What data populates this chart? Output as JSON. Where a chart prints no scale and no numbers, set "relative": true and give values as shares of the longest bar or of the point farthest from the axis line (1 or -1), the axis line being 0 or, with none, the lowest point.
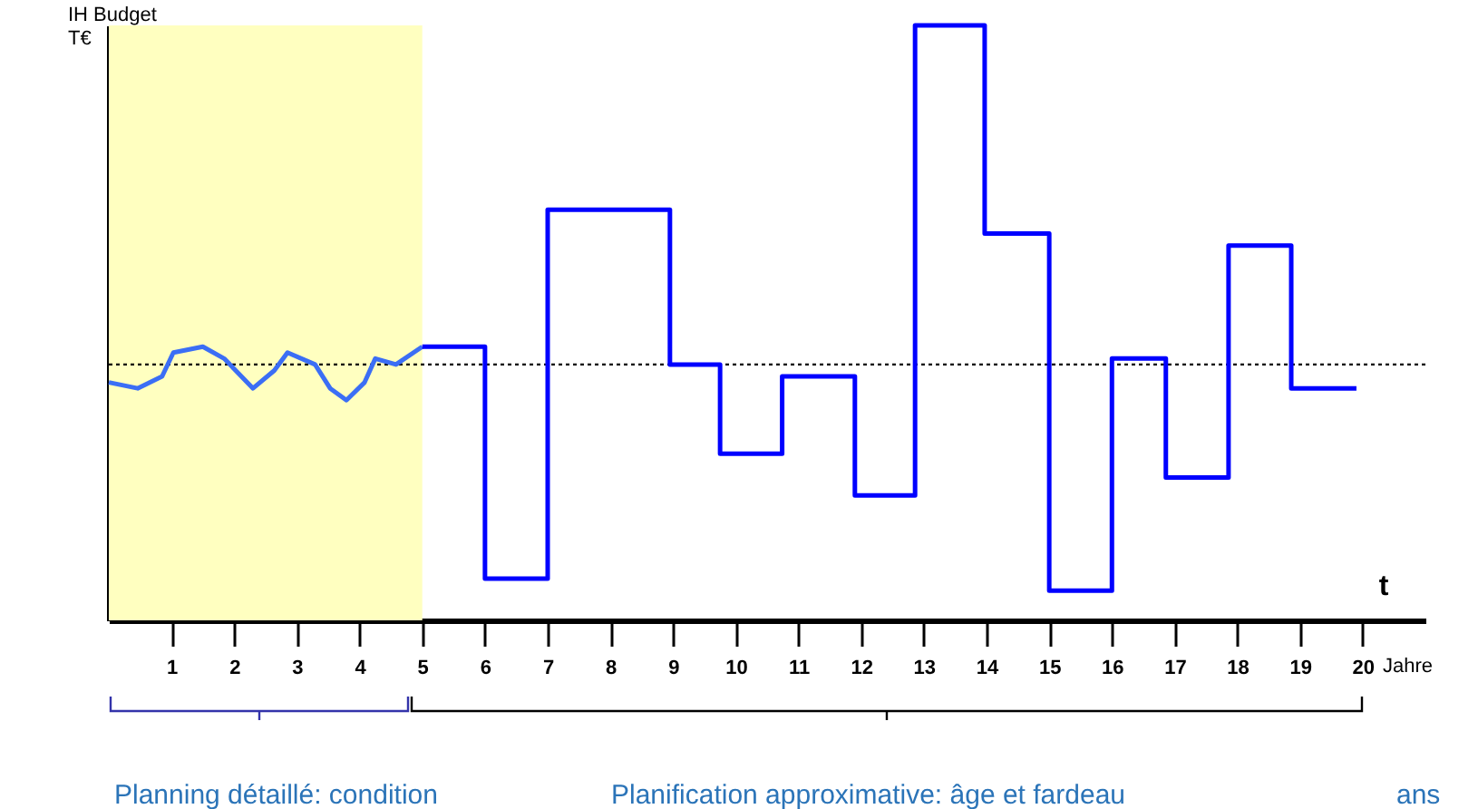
{
  "chart_data": {
    "type": "line",
    "ylabel": "IH Budget T€",
    "xlabel": "Jahre",
    "relative": true,
    "xlim": [
      0,
      21
    ],
    "xticks": [
      1,
      2,
      3,
      4,
      5,
      6,
      7,
      8,
      9,
      10,
      11,
      12,
      13,
      14,
      15,
      16,
      17,
      18,
      19,
      20
    ],
    "tick_labels": "x",
    "grid": false,
    "series": [
      {
        "type": "line",
        "color": "#3b6ef5",
        "x": [
          0,
          0.46,
          0.85,
          1.03,
          1.5,
          1.84,
          2.3,
          2.64,
          2.85,
          3.29,
          3.53,
          3.79,
          4.08,
          4.25,
          4.58,
          5
        ],
        "values": [
          0.4,
          0.39,
          0.41,
          0.45,
          0.46,
          0.44,
          0.39,
          0.42,
          0.45,
          0.43,
          0.39,
          0.37,
          0.4,
          0.44,
          0.43,
          0.46
        ]
      },
      {
        "type": "step",
        "color": "#0000ff",
        "x": [
          5,
          6,
          7,
          8.95,
          9.75,
          10.74,
          11.9,
          12.86,
          13.97,
          15,
          16,
          16.86,
          17.86,
          18.86,
          19.9
        ],
        "values": [
          0.46,
          0.07,
          0.69,
          0.43,
          0.28,
          0.41,
          0.21,
          1,
          0.65,
          0.05,
          0.44,
          0.24,
          0.63,
          0.39,
          0.39
        ]
      }
    ],
    "bands": [
      {
        "axis": "x",
        "from": 0,
        "to": 5,
        "color": "#ffffc0"
      }
    ],
    "ref_lines": [
      {
        "axis": "y",
        "value": 0.43,
        "color": "#000000",
        "line_style": "dotted"
      }
    ],
    "annotations": [
      "t",
      "Planning détaillé: condition",
      "Planification approximative: âge et fardeau",
      "ans"
    ]
  }
}
